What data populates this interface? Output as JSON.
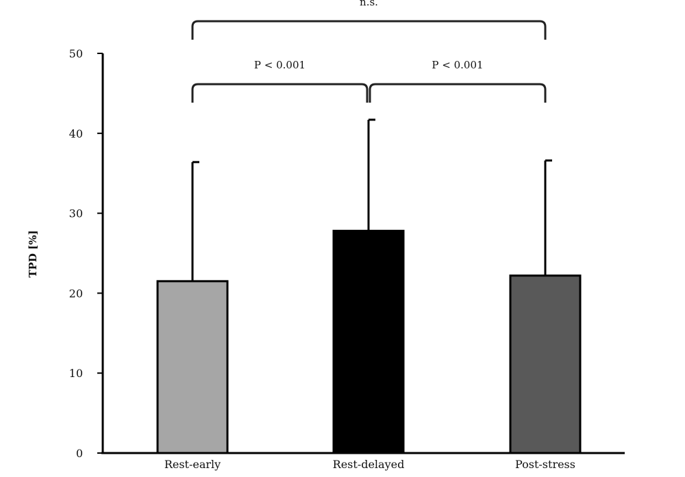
{
  "chart_data": {
    "type": "bar",
    "title": "",
    "xlabel": "",
    "ylabel": "TPD [%]",
    "ylim": [
      0,
      50
    ],
    "yticks": [
      0,
      10,
      20,
      30,
      40,
      50
    ],
    "grid": false,
    "categories": [
      "Rest-early",
      "Rest-delayed",
      "Post-stress"
    ],
    "values": [
      21.5,
      27.8,
      22.2
    ],
    "error_upper": [
      14.9,
      13.9,
      14.4
    ],
    "colors": [
      "#a6a6a6",
      "#000000",
      "#595959"
    ],
    "significance": [
      {
        "from": 0,
        "to": 1,
        "label": "P < 0.001",
        "level": 1
      },
      {
        "from": 1,
        "to": 2,
        "label": "P < 0.001",
        "level": 1
      },
      {
        "from": 0,
        "to": 2,
        "label": "n.s.",
        "level": 2
      }
    ]
  }
}
